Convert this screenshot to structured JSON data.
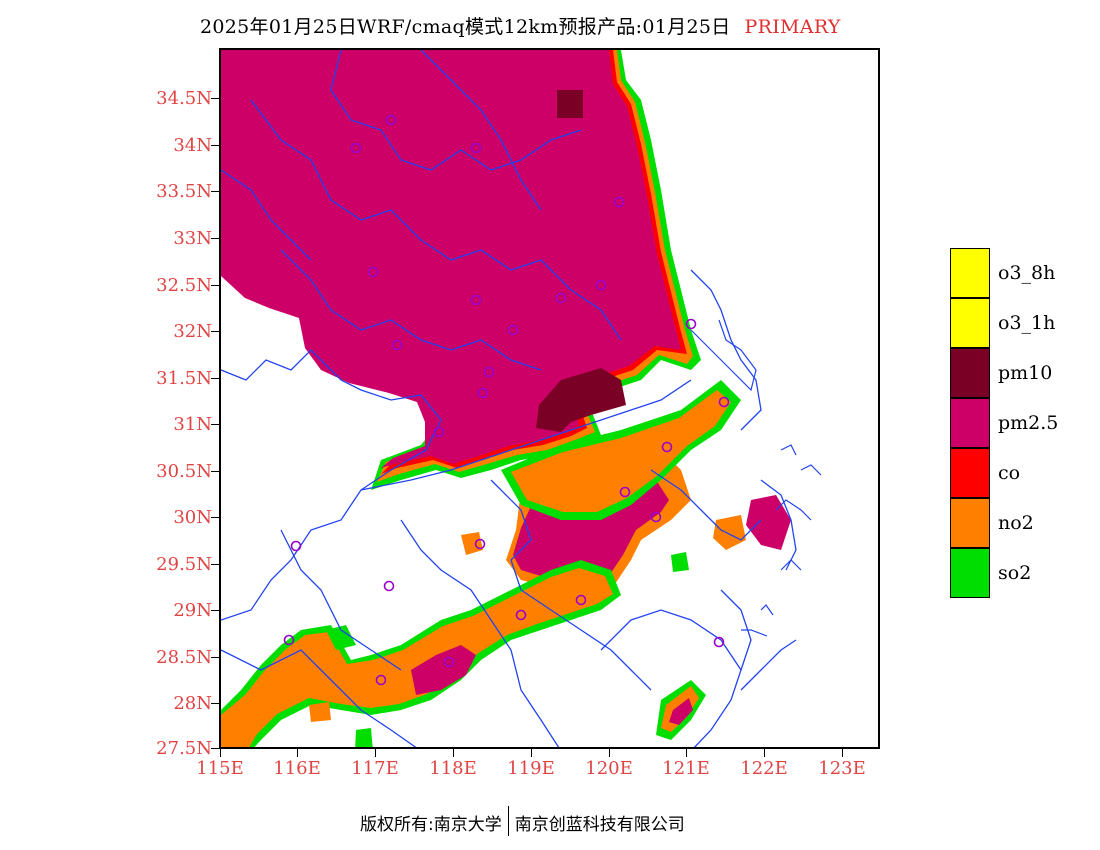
{
  "title": {
    "text": "2025年01月25日WRF/cmaq模式12km预报产品:01月25日",
    "tag": "PRIMARY"
  },
  "axes": {
    "y_labels": [
      "34.5N",
      "34N",
      "33.5N",
      "33N",
      "32.5N",
      "32N",
      "31.5N",
      "31N",
      "30.5N",
      "30N",
      "29.5N",
      "29N",
      "28.5N",
      "28N",
      "27.5N"
    ],
    "x_labels": [
      "115E",
      "116E",
      "117E",
      "118E",
      "119E",
      "120E",
      "121E",
      "122E",
      "123E"
    ]
  },
  "legend": [
    {
      "label": "o3_8h",
      "color": "#ffff00"
    },
    {
      "label": "o3_1h",
      "color": "#ffff00"
    },
    {
      "label": "pm10",
      "color": "#7a0026"
    },
    {
      "label": "pm2.5",
      "color": "#cc0066"
    },
    {
      "label": "co",
      "color": "#ff0000"
    },
    {
      "label": "no2",
      "color": "#ff8000"
    },
    {
      "label": "so2",
      "color": "#00dd00"
    }
  ],
  "colors": {
    "pm25": "#cc0066",
    "pm10": "#7a0026",
    "no2": "#ff8000",
    "co": "#ff0000",
    "so2": "#00dd00",
    "boundary": "#2244ee",
    "city_marker": "#9900cc",
    "axis_label": "#e04545"
  },
  "footer": {
    "left": "版权所有:南京大学",
    "right": "南京创蓝科技有限公司"
  }
}
